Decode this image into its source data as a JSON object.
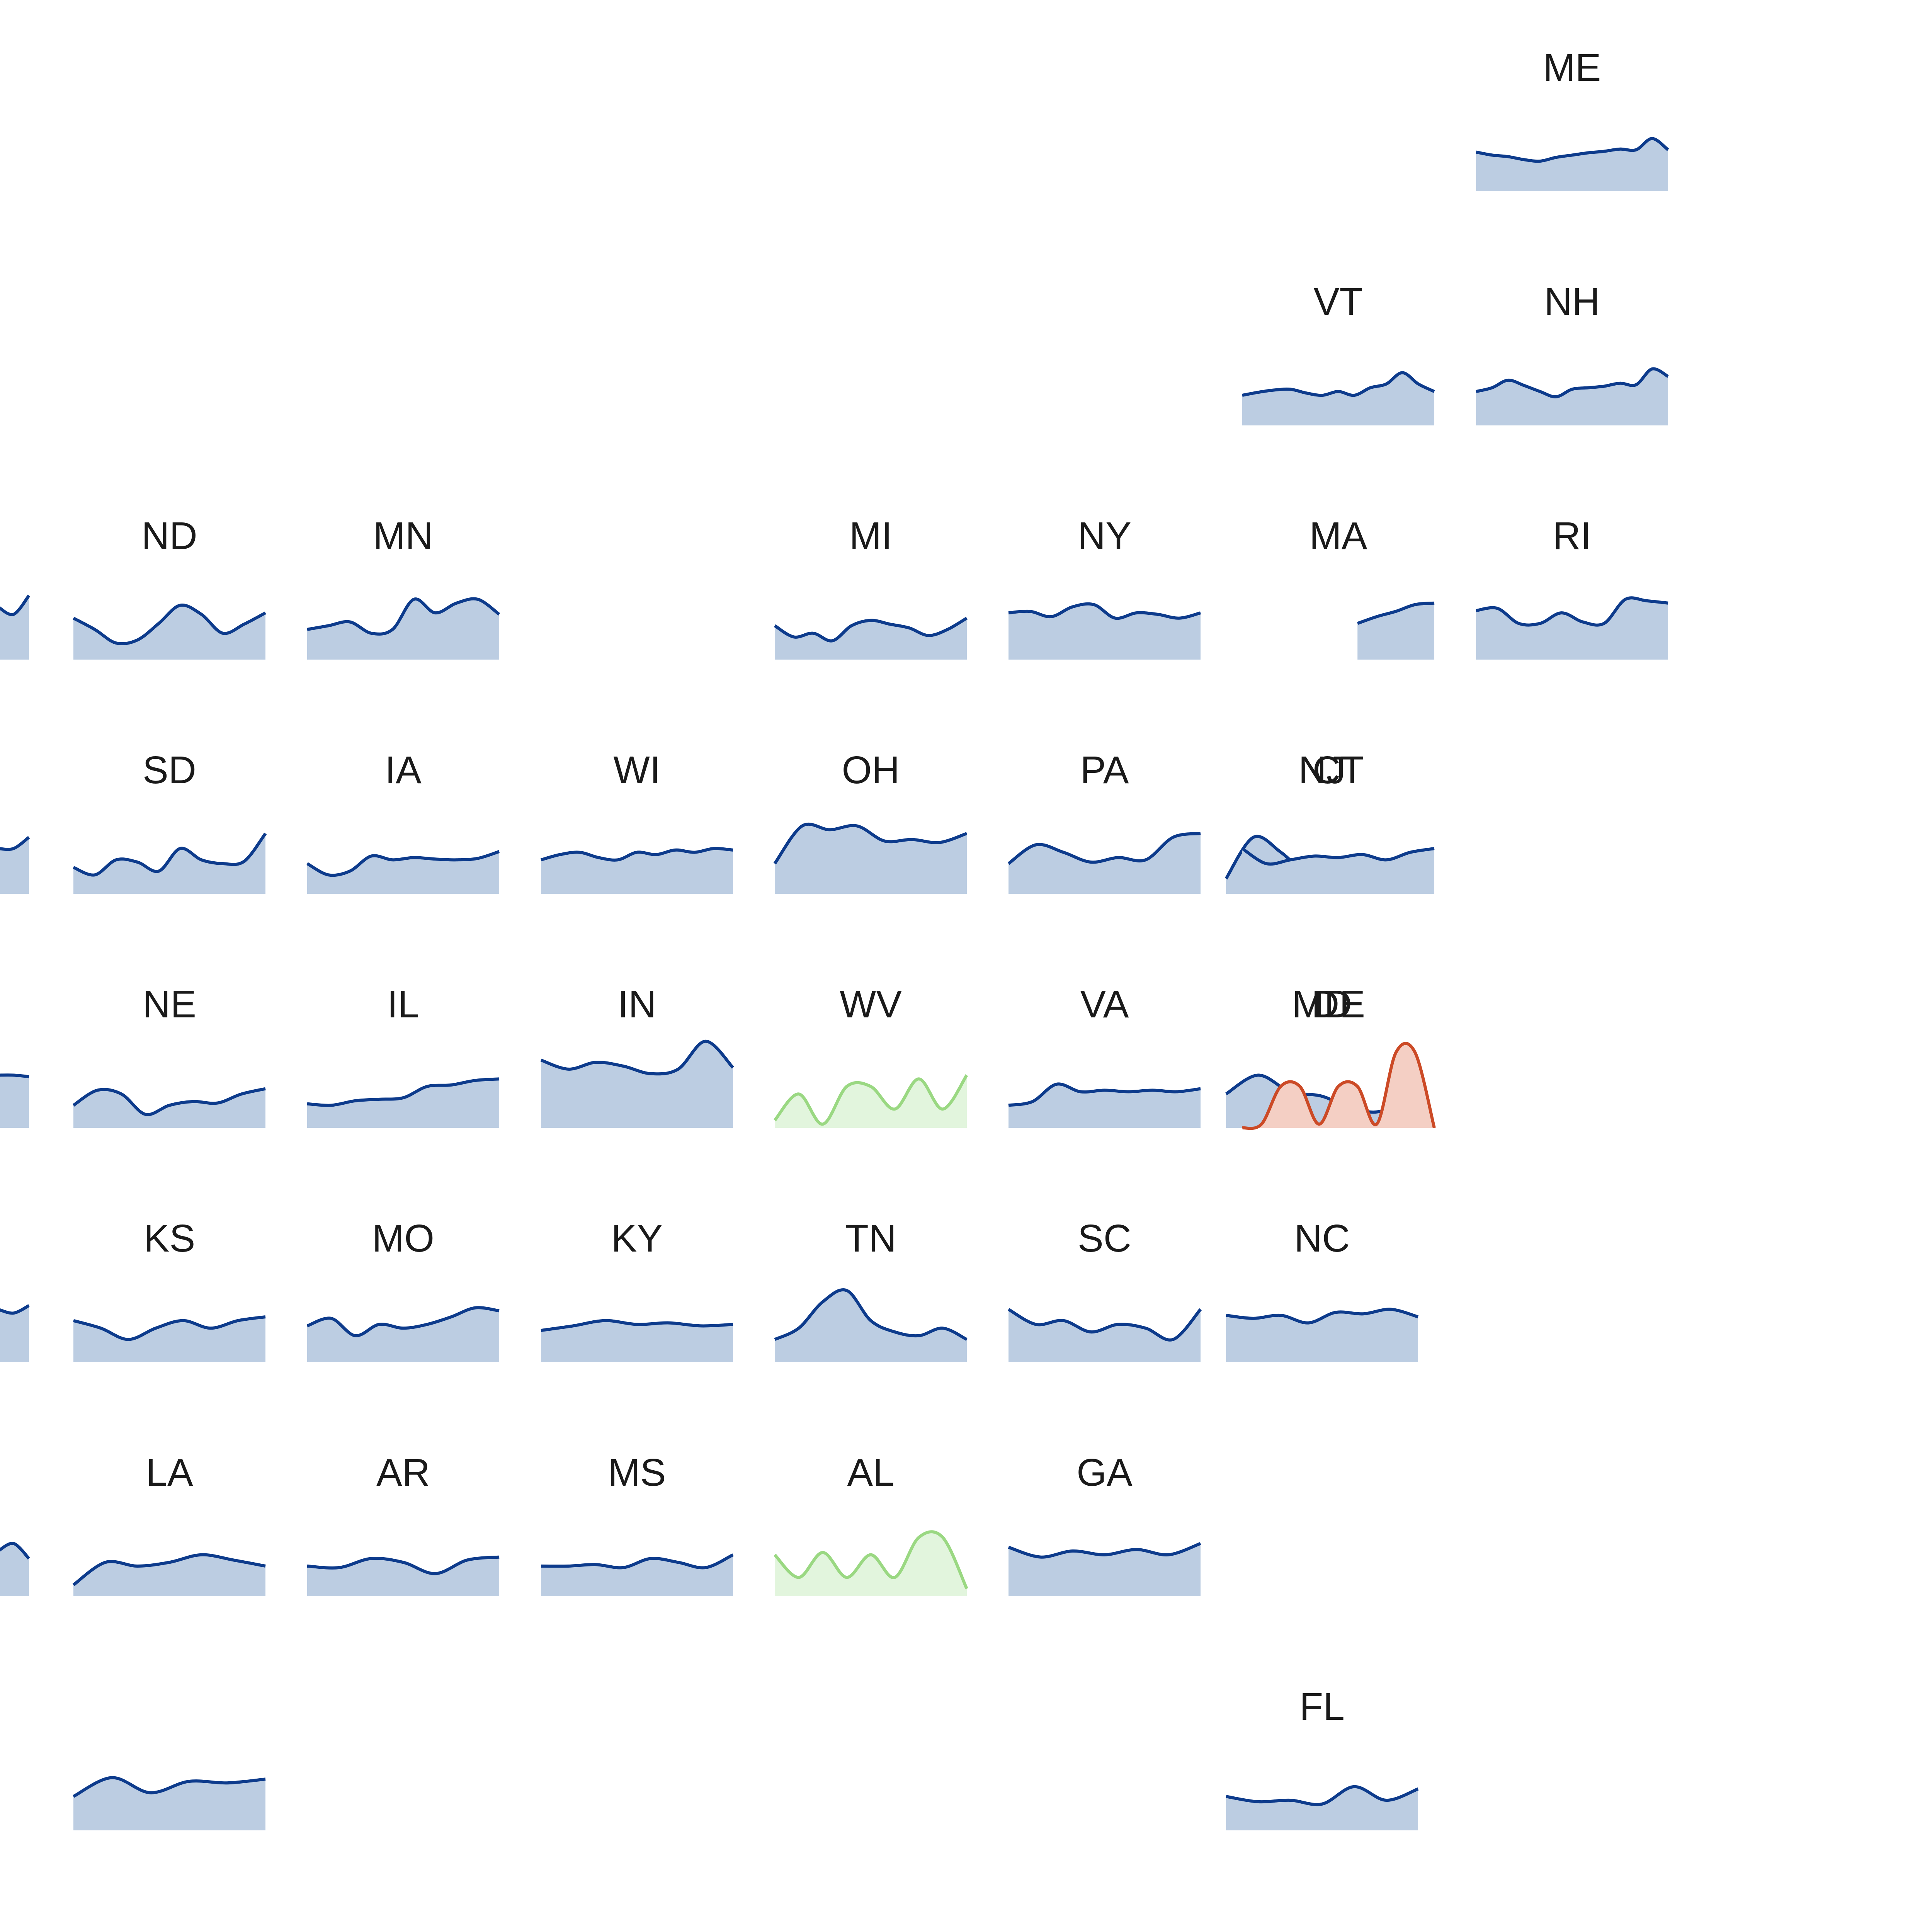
{
  "colors": {
    "default": {
      "line": "#0d3b8c",
      "fill": "#bccde2"
    },
    "green": {
      "line": "#9ad882",
      "fill": "#e2f5dd"
    },
    "orange": {
      "line": "#cc4a26",
      "fill": "#f4cfc4"
    }
  },
  "chart_data": {
    "type": "area",
    "layout": "tile-grid small multiples",
    "ylim": [
      0,
      100
    ],
    "states": [
      {
        "label": "ME",
        "row": 0,
        "col": 7,
        "color": "default",
        "values": [
          52,
          48,
          46,
          42,
          40,
          45,
          48,
          51,
          53,
          56,
          55,
          70,
          55
        ]
      },
      {
        "label": "VT",
        "row": 1,
        "col": 6,
        "color": "default",
        "values": [
          40,
          44,
          47,
          48,
          43,
          40,
          45,
          40,
          50,
          55,
          70,
          55,
          45
        ]
      },
      {
        "label": "NH",
        "row": 1,
        "col": 7,
        "color": "default",
        "values": [
          45,
          50,
          60,
          53,
          45,
          38,
          48,
          50,
          52,
          56,
          54,
          75,
          65
        ]
      },
      {
        "label": "ND",
        "row": 2,
        "col": 1,
        "color": "default",
        "values": [
          55,
          40,
          22,
          26,
          48,
          72,
          60,
          35,
          47,
          62
        ]
      },
      {
        "label": "MN",
        "row": 2,
        "col": 2,
        "color": "default",
        "values": [
          40,
          45,
          50,
          35,
          40,
          80,
          62,
          75,
          80,
          60
        ]
      },
      {
        "label": "MI",
        "row": 2,
        "col": 4,
        "color": "default",
        "values": [
          45,
          30,
          35,
          25,
          45,
          52,
          47,
          42,
          32,
          40,
          55
        ]
      },
      {
        "label": "NY",
        "row": 2,
        "col": 5,
        "color": "default",
        "values": [
          62,
          64,
          57,
          70,
          73,
          55,
          62,
          60,
          55,
          62
        ]
      },
      {
        "label": "MA",
        "row": 2,
        "col": 6,
        "color": "default",
        "values": [
          null,
          null,
          null,
          null,
          null,
          null,
          48,
          57,
          64,
          73,
          75
        ]
      },
      {
        "label": "RI",
        "row": 2,
        "col": 7,
        "color": "default",
        "values": [
          65,
          68,
          48,
          48,
          62,
          50,
          48,
          80,
          78,
          75
        ]
      },
      {
        "label": "SD",
        "row": 3,
        "col": 1,
        "color": "default",
        "values": [
          35,
          25,
          45,
          42,
          30,
          60,
          45,
          40,
          43,
          80
        ]
      },
      {
        "label": "IA",
        "row": 3,
        "col": 2,
        "color": "default",
        "values": [
          40,
          25,
          30,
          50,
          45,
          48,
          46,
          45,
          47,
          56
        ]
      },
      {
        "label": "WI",
        "row": 3,
        "col": 3,
        "color": "default",
        "values": [
          45,
          52,
          55,
          48,
          45,
          55,
          52,
          58,
          55,
          60,
          58
        ]
      },
      {
        "label": "OH",
        "row": 3,
        "col": 4,
        "color": "default",
        "values": [
          40,
          90,
          85,
          90,
          70,
          72,
          68,
          80
        ]
      },
      {
        "label": "PA",
        "row": 3,
        "col": 5,
        "color": "default",
        "values": [
          40,
          65,
          55,
          42,
          48,
          45,
          75,
          80
        ]
      },
      {
        "label": "NJ",
        "row": 3,
        "col": 5.93,
        "color": "default",
        "values": [
          20,
          75,
          55,
          25,
          25,
          45,
          40,
          20
        ]
      },
      {
        "label": "CT",
        "row": 3,
        "col": 6,
        "color": "default",
        "values": [
          60,
          40,
          45,
          50,
          48,
          52,
          45,
          55,
          60
        ]
      },
      {
        "label": "NE",
        "row": 4,
        "col": 1,
        "color": "default",
        "values": [
          30,
          50,
          45,
          18,
          30,
          35,
          33,
          45,
          52
        ]
      },
      {
        "label": "IL",
        "row": 4,
        "col": 2,
        "color": "default",
        "values": [
          32,
          30,
          36,
          38,
          40,
          55,
          57,
          63,
          65
        ]
      },
      {
        "label": "IN",
        "row": 4,
        "col": 3,
        "color": "default",
        "values": [
          90,
          78,
          87,
          82,
          72,
          78,
          115,
          80
        ]
      },
      {
        "label": "WV",
        "row": 4,
        "col": 4,
        "color": "green",
        "values": [
          10,
          45,
          5,
          55,
          55,
          25,
          65,
          25,
          70
        ]
      },
      {
        "label": "VA",
        "row": 4,
        "col": 5,
        "color": "default",
        "values": [
          30,
          35,
          58,
          48,
          50,
          48,
          50,
          48,
          52
        ]
      },
      {
        "label": "MD",
        "row": 4,
        "col": 5.93,
        "color": "default",
        "values": [
          45,
          70,
          48,
          42,
          25,
          25,
          70
        ]
      },
      {
        "label": "DE",
        "row": 4,
        "col": 6,
        "color": "orange",
        "values": [
          0,
          5,
          55,
          55,
          5,
          55,
          55,
          5,
          100,
          100,
          0
        ]
      },
      {
        "label": "KS",
        "row": 5,
        "col": 1,
        "color": "default",
        "values": [
          55,
          45,
          30,
          45,
          55,
          45,
          55,
          60
        ]
      },
      {
        "label": "MO",
        "row": 5,
        "col": 2,
        "color": "default",
        "values": [
          48,
          58,
          35,
          50,
          45,
          50,
          60,
          72,
          68
        ]
      },
      {
        "label": "KY",
        "row": 5,
        "col": 3,
        "color": "default",
        "values": [
          42,
          48,
          55,
          50,
          52,
          48,
          50
        ]
      },
      {
        "label": "TN",
        "row": 5,
        "col": 4,
        "color": "default",
        "values": [
          30,
          45,
          80,
          95,
          55,
          40,
          35,
          45,
          30
        ]
      },
      {
        "label": "SC",
        "row": 5,
        "col": 5,
        "color": "default",
        "values": [
          70,
          50,
          55,
          40,
          50,
          45,
          30,
          70
        ]
      },
      {
        "label": "NC",
        "row": 5,
        "col": 5.93,
        "color": "default",
        "values": [
          62,
          58,
          62,
          52,
          66,
          64,
          70,
          60
        ]
      },
      {
        "label": "LA",
        "row": 6,
        "col": 1,
        "color": "default",
        "values": [
          15,
          45,
          40,
          45,
          55,
          48,
          40
        ]
      },
      {
        "label": "AR",
        "row": 6,
        "col": 2,
        "color": "default",
        "values": [
          40,
          38,
          50,
          45,
          30,
          48,
          52
        ]
      },
      {
        "label": "MS",
        "row": 6,
        "col": 3,
        "color": "default",
        "values": [
          40,
          40,
          42,
          38,
          50,
          45,
          38,
          55
        ]
      },
      {
        "label": "AL",
        "row": 6,
        "col": 4,
        "color": "green",
        "values": [
          55,
          25,
          58,
          25,
          55,
          25,
          78,
          78,
          10
        ]
      },
      {
        "label": "GA",
        "row": 6,
        "col": 5,
        "color": "default",
        "values": [
          65,
          52,
          60,
          55,
          62,
          55,
          70
        ]
      },
      {
        "label": "",
        "row": 7,
        "col": 1,
        "color": "default",
        "values": [
          45,
          70,
          50,
          65,
          63,
          68
        ]
      },
      {
        "label": "FL",
        "row": 7,
        "col": 5.93,
        "color": "default",
        "values": [
          45,
          38,
          40,
          35,
          58,
          40,
          55
        ]
      },
      {
        "label": "",
        "row": 2,
        "col": 0,
        "edge": true,
        "color": "default",
        "values": [
          70,
          60,
          85
        ]
      },
      {
        "label": "",
        "row": 3,
        "col": 0,
        "edge": true,
        "color": "default",
        "values": [
          60,
          60,
          75
        ]
      },
      {
        "label": "",
        "row": 4,
        "col": 0,
        "edge": true,
        "color": "default",
        "values": [
          70,
          70,
          68
        ]
      },
      {
        "label": "",
        "row": 5,
        "col": 0,
        "edge": true,
        "color": "default",
        "values": [
          70,
          65,
          75
        ]
      },
      {
        "label": "",
        "row": 6,
        "col": 0,
        "edge": true,
        "color": "default",
        "values": [
          60,
          70,
          50
        ]
      }
    ]
  }
}
